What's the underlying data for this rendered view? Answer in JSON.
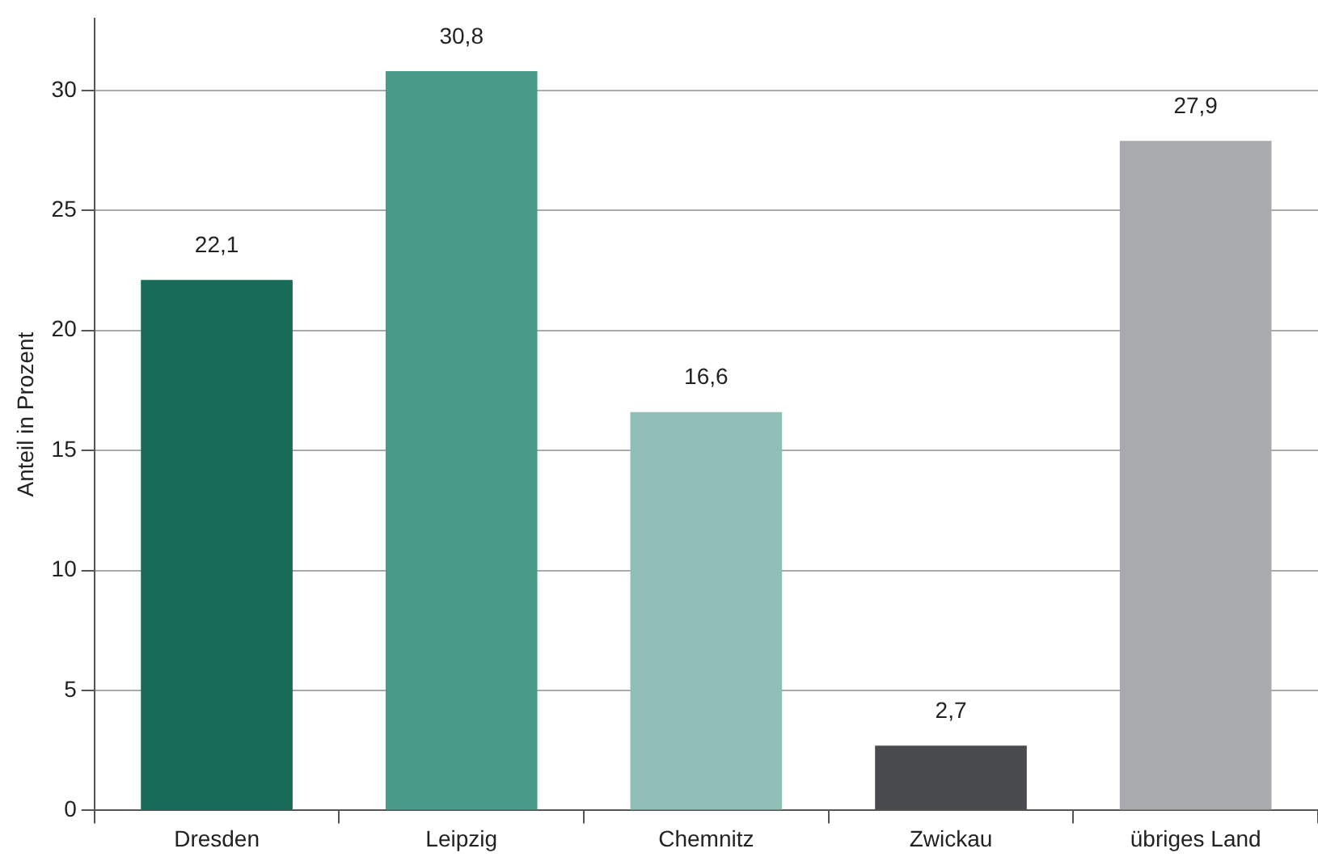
{
  "chart_data": {
    "type": "bar",
    "ylabel": "Anteil in Prozent",
    "categories": [
      "Dresden",
      "Leipzig",
      "Chemnitz",
      "Zwickau",
      "übriges Land"
    ],
    "values": [
      22.1,
      30.8,
      16.6,
      2.7,
      27.9
    ],
    "colors": [
      "#176b58",
      "#4a9a8a",
      "#8fbfb7",
      "#4a4b4f",
      "#a9aaad"
    ],
    "value_labels": [
      "22,1",
      "30,8",
      "16,6",
      "2,7",
      "27,9"
    ],
    "ylim": [
      0,
      33
    ],
    "yticks": [
      0,
      5,
      10,
      15,
      20,
      25,
      30
    ],
    "grid": "y",
    "legend": false
  }
}
